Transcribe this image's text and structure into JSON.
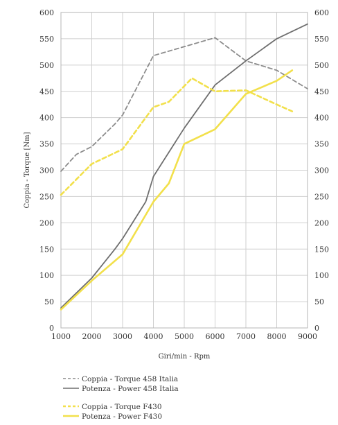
{
  "chart_data": {
    "type": "line",
    "xlabel": "Giri/min - Rpm",
    "ylabel": "Coppia - Torque [Nm]",
    "xlim": [
      1000,
      9000
    ],
    "ylim": [
      0,
      600
    ],
    "x_ticks": [
      "1000",
      "2000",
      "3000",
      "4000",
      "5000",
      "6000",
      "7000",
      "8000",
      "9000"
    ],
    "y_ticks": [
      "0",
      "50",
      "100",
      "150",
      "200",
      "250",
      "300",
      "350",
      "400",
      "450",
      "500",
      "550",
      "600"
    ],
    "grid": true,
    "legend_position": "bottom",
    "series": [
      {
        "name": "Coppia - Torque 458 Italia",
        "color": "#8c8c8c",
        "style": "dashed",
        "x": [
          1000,
          1500,
          2000,
          2750,
          3000,
          4000,
          5000,
          6000,
          7000,
          8000,
          9000
        ],
        "y": [
          298,
          330,
          345,
          388,
          405,
          518,
          535,
          552,
          508,
          490,
          455
        ]
      },
      {
        "name": "Potenza - Power 458 Italia",
        "color": "#6e6e6e",
        "style": "solid",
        "x": [
          1000,
          2000,
          2750,
          3000,
          3750,
          4000,
          5000,
          6000,
          7000,
          8000,
          9000
        ],
        "y": [
          38,
          95,
          150,
          170,
          240,
          288,
          380,
          462,
          508,
          550,
          578
        ]
      },
      {
        "name": "Coppia - Torque F430",
        "color": "#f2e04b",
        "style": "dashed",
        "x": [
          1000,
          2000,
          3000,
          4000,
          4500,
          5250,
          6000,
          7000,
          8000,
          8500
        ],
        "y": [
          253,
          312,
          340,
          420,
          430,
          475,
          450,
          452,
          425,
          412
        ]
      },
      {
        "name": "Potenza - Power F430",
        "color": "#f2e04b",
        "style": "solid",
        "x": [
          1000,
          2000,
          3000,
          4000,
          4500,
          5000,
          6000,
          7000,
          8000,
          8500
        ],
        "y": [
          35,
          90,
          140,
          240,
          275,
          350,
          378,
          445,
          470,
          490
        ]
      }
    ]
  }
}
